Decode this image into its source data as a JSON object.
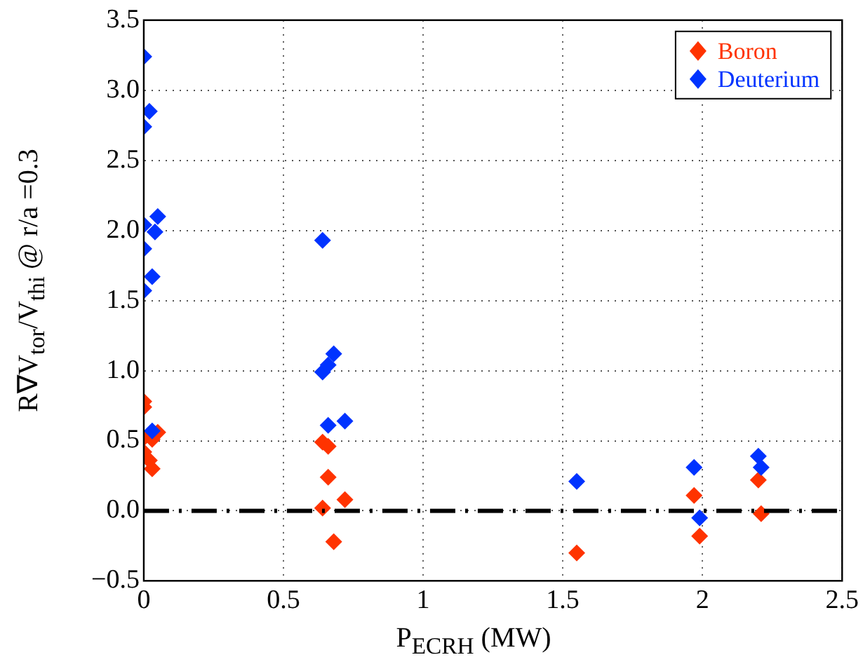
{
  "chart_data": {
    "type": "scatter",
    "xlabel": "P$_{ECRH}$ (MW)",
    "ylabel": "R∇V$_{tor}$/V$_{thi}$ @ r/a =0.3",
    "xlim": [
      0,
      2.5
    ],
    "xticks": [
      0,
      0.5,
      1,
      1.5,
      2,
      2.5
    ],
    "ylim": [
      -0.5,
      3.5
    ],
    "yticks": [
      {
        "value": -0.5,
        "label": "−0.5"
      },
      {
        "value": 0,
        "label": "0.0"
      },
      {
        "value": 0.5,
        "label": "0.5"
      },
      {
        "value": 1,
        "label": "1.0"
      },
      {
        "value": 1.5,
        "label": "1.5"
      },
      {
        "value": 2,
        "label": "2.0"
      },
      {
        "value": 2.5,
        "label": "2.5"
      },
      {
        "value": 3,
        "label": "3.0"
      },
      {
        "value": 3.5,
        "label": "3.5"
      }
    ],
    "grid": true,
    "legend": "top right",
    "marker": "diamond",
    "ref_lines": [
      {
        "axis": "y",
        "value": 0,
        "color": "#000000",
        "line_style": "dashdot"
      }
    ],
    "series": [
      {
        "name": "Boron",
        "color": "#ff3300",
        "x": [
          0.0,
          0.0,
          0.0,
          0.05,
          0.0,
          0.02,
          0.03,
          0.03,
          0.64,
          0.66,
          0.66,
          0.64,
          0.72,
          0.68,
          1.55,
          1.97,
          1.99,
          2.2,
          2.21
        ],
        "values": [
          0.78,
          0.74,
          0.52,
          0.56,
          0.42,
          0.36,
          0.3,
          0.51,
          0.49,
          0.46,
          0.24,
          0.02,
          0.08,
          -0.22,
          -0.3,
          0.11,
          -0.18,
          0.22,
          -0.02
        ]
      },
      {
        "name": "Deuterium",
        "color": "#0033ff",
        "x": [
          0.0,
          0.02,
          0.0,
          0.0,
          0.05,
          0.04,
          0.0,
          0.03,
          0.0,
          0.03,
          0.64,
          0.64,
          0.66,
          0.68,
          0.66,
          0.72,
          1.55,
          1.97,
          1.99,
          2.2,
          2.21
        ],
        "values": [
          3.24,
          2.85,
          2.74,
          2.04,
          2.1,
          1.99,
          1.87,
          1.67,
          1.57,
          0.57,
          1.93,
          0.99,
          1.04,
          1.12,
          0.61,
          0.64,
          0.21,
          0.31,
          -0.05,
          0.39,
          0.31
        ]
      }
    ]
  }
}
